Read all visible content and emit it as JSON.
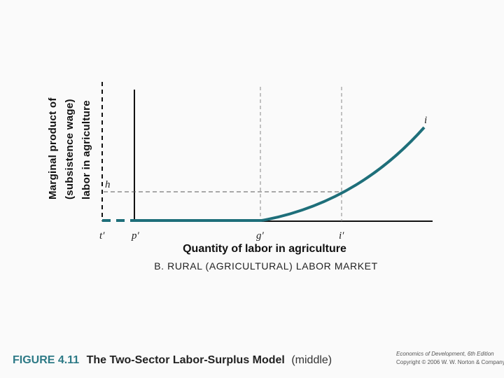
{
  "diagram": {
    "y_axis_label": [
      "Marginal product of",
      "(subsistence wage)",
      "labor in agriculture"
    ],
    "x_axis_label": "Quantity of labor in agriculture",
    "panel_title": "B. RURAL (AGRICULTURAL) LABOR MARKET",
    "point_labels": {
      "t": "t′",
      "p": "p′",
      "g": "g′",
      "i_axis": "i′",
      "h": "h",
      "i_curve": "i"
    },
    "curve_color": "#1e6f7a"
  },
  "caption": {
    "figure_number": "FIGURE 4.11",
    "title": "The Two-Sector Labor-Surplus Model",
    "note": "(middle)",
    "accent_color": "#2d7a86"
  },
  "credit": {
    "line1": "Economics of Development, 6th Edition",
    "line2": "Copyright © 2006 W. W. Norton & Company"
  }
}
